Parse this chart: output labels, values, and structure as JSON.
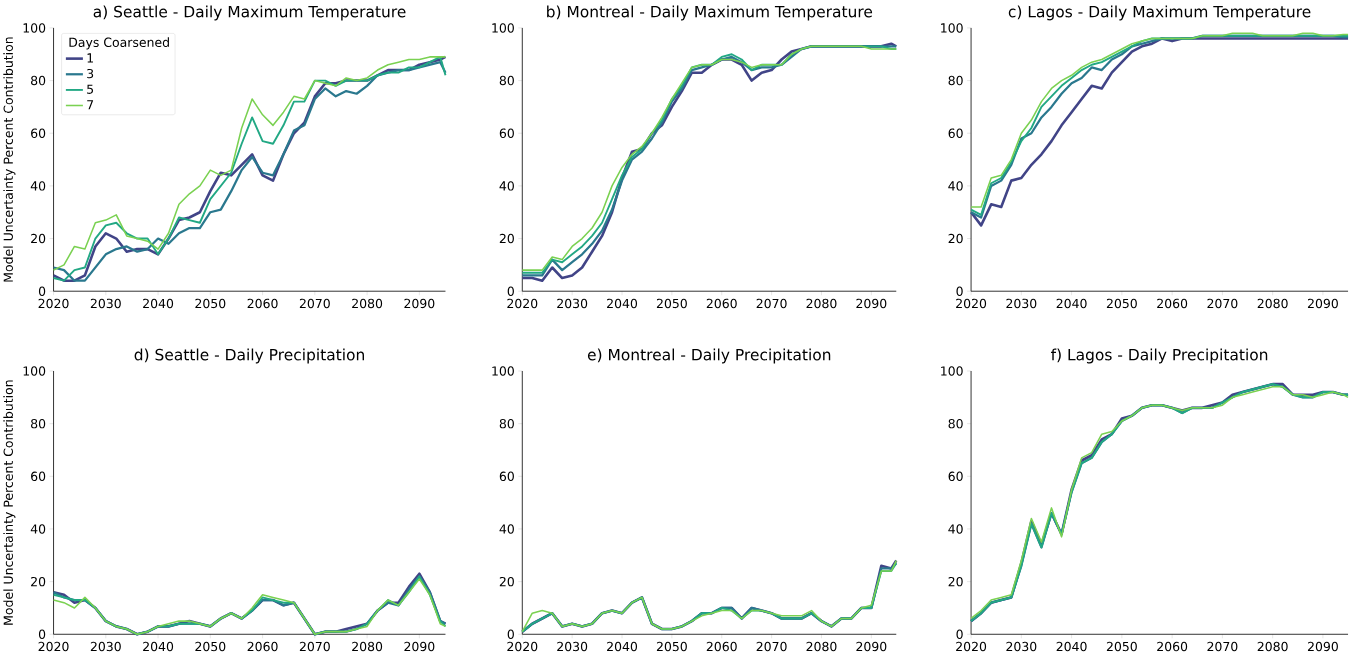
{
  "chart_data": [
    {
      "type": "line",
      "title": "a) Seattle - Daily Maximum Temperature",
      "ylabel": "Model Uncertainty Percent Contribution",
      "legend": "top left",
      "legend_title": "Days Coarsened",
      "x": [
        2020,
        2022,
        2024,
        2026,
        2028,
        2030,
        2032,
        2034,
        2036,
        2038,
        2040,
        2042,
        2044,
        2046,
        2048,
        2050,
        2052,
        2054,
        2056,
        2058,
        2060,
        2062,
        2064,
        2066,
        2068,
        2070,
        2072,
        2074,
        2076,
        2078,
        2080,
        2082,
        2084,
        2086,
        2088,
        2090,
        2092,
        2094,
        2095
      ],
      "xlim": [
        2020,
        2095
      ],
      "ylim": [
        0,
        100
      ],
      "xticks": [
        2020,
        2030,
        2040,
        2050,
        2060,
        2070,
        2080,
        2090
      ],
      "yticks": [
        0,
        20,
        40,
        60,
        80,
        100
      ],
      "series": [
        {
          "name": "1",
          "color": "#414487",
          "values": [
            6,
            4,
            4,
            6,
            17,
            22,
            20,
            15,
            16,
            16,
            14,
            20,
            27,
            28,
            30,
            38,
            45,
            44,
            48,
            52,
            44,
            42,
            52,
            60,
            64,
            74,
            79,
            79,
            80,
            80,
            80,
            82,
            84,
            84,
            84,
            86,
            87,
            88,
            89
          ]
        },
        {
          "name": "3",
          "color": "#2a788e",
          "values": [
            9,
            8,
            4,
            4,
            9,
            14,
            16,
            17,
            15,
            16,
            20,
            18,
            22,
            24,
            24,
            30,
            31,
            38,
            46,
            51,
            45,
            44,
            52,
            61,
            63,
            73,
            77,
            74,
            76,
            75,
            78,
            82,
            83,
            84,
            84,
            85,
            86,
            87,
            83
          ]
        },
        {
          "name": "5",
          "color": "#22a884",
          "values": [
            5,
            4,
            8,
            9,
            20,
            25,
            26,
            22,
            20,
            20,
            14,
            20,
            28,
            27,
            26,
            35,
            40,
            45,
            56,
            66,
            57,
            56,
            63,
            72,
            72,
            80,
            80,
            78,
            80,
            80,
            80,
            82,
            83,
            83,
            85,
            85,
            87,
            89,
            82
          ]
        },
        {
          "name": "7",
          "color": "#7ad151",
          "values": [
            8,
            10,
            17,
            16,
            26,
            27,
            29,
            21,
            20,
            19,
            16,
            22,
            33,
            37,
            40,
            46,
            44,
            46,
            62,
            73,
            67,
            63,
            68,
            74,
            73,
            80,
            79,
            78,
            81,
            80,
            81,
            84,
            86,
            87,
            88,
            88,
            89,
            89,
            89
          ]
        }
      ]
    },
    {
      "type": "line",
      "title": "b) Montreal - Daily Maximum Temperature",
      "x": [
        2020,
        2022,
        2024,
        2026,
        2028,
        2030,
        2032,
        2034,
        2036,
        2038,
        2040,
        2042,
        2044,
        2046,
        2048,
        2050,
        2052,
        2054,
        2056,
        2058,
        2060,
        2062,
        2064,
        2066,
        2068,
        2070,
        2072,
        2074,
        2076,
        2078,
        2080,
        2082,
        2084,
        2086,
        2088,
        2090,
        2092,
        2094,
        2095
      ],
      "xlim": [
        2020,
        2095
      ],
      "ylim": [
        0,
        100
      ],
      "xticks": [
        2020,
        2030,
        2040,
        2050,
        2060,
        2070,
        2080,
        2090
      ],
      "yticks": [
        0,
        20,
        40,
        60,
        80,
        100
      ],
      "series": [
        {
          "color": "#414487",
          "values": [
            5,
            5,
            4,
            9,
            5,
            6,
            9,
            15,
            21,
            30,
            43,
            53,
            54,
            60,
            63,
            70,
            76,
            83,
            83,
            86,
            88,
            88,
            86,
            80,
            83,
            84,
            88,
            91,
            92,
            93,
            93,
            93,
            93,
            93,
            93,
            93,
            93,
            94,
            93
          ]
        },
        {
          "color": "#2a788e",
          "values": [
            6,
            6,
            6,
            12,
            8,
            11,
            14,
            18,
            23,
            31,
            42,
            50,
            53,
            58,
            64,
            72,
            77,
            84,
            85,
            86,
            88,
            89,
            87,
            84,
            85,
            85,
            86,
            89,
            92,
            93,
            93,
            93,
            93,
            93,
            93,
            93,
            93,
            93,
            93
          ]
        },
        {
          "color": "#22a884",
          "values": [
            7,
            7,
            7,
            12,
            11,
            14,
            17,
            21,
            26,
            35,
            44,
            51,
            54,
            60,
            65,
            73,
            78,
            85,
            86,
            86,
            89,
            90,
            88,
            84,
            86,
            86,
            86,
            90,
            92,
            93,
            93,
            93,
            93,
            93,
            93,
            93,
            93,
            92,
            92
          ]
        },
        {
          "color": "#7ad151",
          "values": [
            8,
            8,
            8,
            13,
            12,
            17,
            20,
            24,
            30,
            40,
            47,
            52,
            55,
            60,
            66,
            73,
            79,
            85,
            86,
            86,
            88,
            88,
            87,
            85,
            86,
            86,
            86,
            90,
            92,
            93,
            93,
            93,
            93,
            93,
            93,
            92,
            92,
            92,
            92
          ]
        }
      ]
    },
    {
      "type": "line",
      "title": "c) Lagos - Daily Maximum Temperature",
      "x": [
        2020,
        2022,
        2024,
        2026,
        2028,
        2030,
        2032,
        2034,
        2036,
        2038,
        2040,
        2042,
        2044,
        2046,
        2048,
        2050,
        2052,
        2054,
        2056,
        2058,
        2060,
        2062,
        2064,
        2066,
        2068,
        2070,
        2072,
        2074,
        2076,
        2078,
        2080,
        2082,
        2084,
        2086,
        2088,
        2090,
        2092,
        2094,
        2095
      ],
      "xlim": [
        2020,
        2095
      ],
      "ylim": [
        0,
        100
      ],
      "xticks": [
        2020,
        2030,
        2040,
        2050,
        2060,
        2070,
        2080,
        2090
      ],
      "yticks": [
        0,
        20,
        40,
        60,
        80,
        100
      ],
      "series": [
        {
          "color": "#414487",
          "values": [
            30,
            25,
            33,
            32,
            42,
            43,
            48,
            52,
            57,
            63,
            68,
            73,
            78,
            77,
            83,
            87,
            91,
            93,
            94,
            96,
            95,
            96,
            96,
            96,
            96,
            96,
            96,
            96,
            96,
            96,
            96,
            96,
            96,
            96,
            96,
            96,
            96,
            96,
            96
          ]
        },
        {
          "color": "#2a788e",
          "values": [
            30,
            28,
            40,
            42,
            48,
            58,
            60,
            66,
            70,
            75,
            79,
            81,
            85,
            84,
            88,
            90,
            93,
            94,
            95,
            96,
            96,
            96,
            96,
            97,
            97,
            97,
            97,
            97,
            97,
            97,
            97,
            97,
            97,
            97,
            97,
            97,
            97,
            96.5,
            96.5
          ]
        },
        {
          "color": "#22a884",
          "values": [
            31,
            29,
            41,
            43,
            49,
            57,
            62,
            70,
            74,
            78,
            81,
            84,
            86,
            87,
            89,
            91,
            93,
            95,
            96,
            96,
            96,
            96,
            96,
            97,
            97,
            97,
            97,
            97,
            97,
            97,
            97,
            97,
            97,
            97,
            97,
            97,
            97,
            97,
            97
          ]
        },
        {
          "color": "#7ad151",
          "values": [
            32,
            32,
            43,
            44,
            50,
            60,
            65,
            72,
            77,
            80,
            82,
            85,
            87,
            88,
            90,
            92,
            94,
            95,
            96,
            96,
            96,
            96,
            96,
            97,
            97,
            97,
            98,
            98,
            98,
            97,
            97,
            97,
            97,
            98,
            98,
            97,
            97,
            97.5,
            97.5
          ]
        }
      ]
    },
    {
      "type": "line",
      "title": "d) Seattle - Daily Precipitation",
      "ylabel": "Model Uncertainty Percent Contribution",
      "x": [
        2020,
        2022,
        2024,
        2026,
        2028,
        2030,
        2032,
        2034,
        2036,
        2038,
        2040,
        2042,
        2044,
        2046,
        2048,
        2050,
        2052,
        2054,
        2056,
        2058,
        2060,
        2062,
        2064,
        2066,
        2068,
        2070,
        2072,
        2074,
        2076,
        2078,
        2080,
        2082,
        2084,
        2086,
        2088,
        2090,
        2092,
        2094,
        2095
      ],
      "xlim": [
        2020,
        2095
      ],
      "ylim": [
        0,
        100
      ],
      "xticks": [
        2020,
        2030,
        2040,
        2050,
        2060,
        2070,
        2080,
        2090
      ],
      "yticks": [
        0,
        20,
        40,
        60,
        80,
        100
      ],
      "series": [
        {
          "color": "#414487",
          "values": [
            16,
            15,
            12,
            13,
            10,
            5,
            3,
            2,
            0,
            1,
            3,
            3,
            4,
            5,
            4,
            3,
            6,
            8,
            6,
            9,
            13,
            13,
            11,
            12,
            6,
            0,
            1,
            1,
            2,
            3,
            4,
            9,
            12,
            12,
            18,
            23,
            16,
            5,
            4
          ]
        },
        {
          "color": "#2a788e",
          "values": [
            16,
            14,
            13,
            13,
            10,
            5,
            3,
            2,
            0,
            1,
            3,
            3,
            4,
            4,
            4,
            3,
            6,
            8,
            6,
            9,
            13,
            13,
            11,
            12,
            6,
            0,
            1,
            1,
            1,
            2,
            4,
            9,
            12,
            11,
            17,
            22,
            16,
            5,
            4
          ]
        },
        {
          "color": "#22a884",
          "values": [
            15,
            14,
            13,
            13,
            10,
            5,
            3,
            2,
            0,
            1,
            3,
            3,
            4,
            4,
            4,
            3,
            6,
            8,
            6,
            9,
            14,
            13,
            12,
            12,
            6,
            0,
            1,
            1,
            1,
            2,
            4,
            9,
            13,
            11,
            16,
            22,
            15,
            5,
            3
          ]
        },
        {
          "color": "#7ad151",
          "values": [
            13,
            12,
            10,
            14,
            10,
            5,
            3,
            2,
            0,
            1,
            3,
            4,
            5,
            5,
            4,
            3,
            6,
            8,
            6,
            10,
            15,
            14,
            13,
            12,
            6,
            0,
            1,
            1,
            1,
            2,
            3,
            9,
            13,
            11,
            16,
            21,
            15,
            4,
            3
          ]
        }
      ]
    },
    {
      "type": "line",
      "title": "e) Montreal - Daily Precipitation",
      "x": [
        2020,
        2022,
        2024,
        2026,
        2028,
        2030,
        2032,
        2034,
        2036,
        2038,
        2040,
        2042,
        2044,
        2046,
        2048,
        2050,
        2052,
        2054,
        2056,
        2058,
        2060,
        2062,
        2064,
        2066,
        2068,
        2070,
        2072,
        2074,
        2076,
        2078,
        2080,
        2082,
        2084,
        2086,
        2088,
        2090,
        2092,
        2094,
        2095
      ],
      "xlim": [
        2020,
        2095
      ],
      "ylim": [
        0,
        100
      ],
      "xticks": [
        2020,
        2030,
        2040,
        2050,
        2060,
        2070,
        2080,
        2090
      ],
      "yticks": [
        0,
        20,
        40,
        60,
        80,
        100
      ],
      "series": [
        {
          "color": "#414487",
          "values": [
            1,
            4,
            6,
            8,
            3,
            4,
            3,
            4,
            8,
            9,
            8,
            12,
            14,
            4,
            2,
            2,
            3,
            5,
            8,
            8,
            10,
            10,
            6,
            10,
            9,
            8,
            6,
            6,
            6,
            8,
            5,
            3,
            6,
            6,
            10,
            10,
            26,
            25,
            28
          ]
        },
        {
          "color": "#2a788e",
          "values": [
            1,
            4,
            6,
            8,
            3,
            4,
            3,
            4,
            8,
            9,
            8,
            12,
            14,
            4,
            2,
            2,
            3,
            5,
            8,
            8,
            10,
            10,
            6,
            10,
            9,
            8,
            6,
            6,
            6,
            8,
            5,
            3,
            6,
            6,
            10,
            10,
            25,
            25,
            27
          ]
        },
        {
          "color": "#22a884",
          "values": [
            1,
            4,
            6,
            8,
            3,
            4,
            3,
            4,
            8,
            9,
            8,
            12,
            14,
            4,
            2,
            2,
            3,
            5,
            8,
            8,
            10,
            9,
            6,
            9,
            9,
            8,
            6,
            6,
            6,
            8,
            5,
            3,
            6,
            6,
            10,
            10,
            24,
            24,
            27
          ]
        },
        {
          "color": "#7ad151",
          "values": [
            1,
            8,
            9,
            8,
            3,
            4,
            3,
            4,
            8,
            9,
            8,
            12,
            14,
            4,
            2,
            2,
            3,
            5,
            7,
            8,
            9,
            9,
            6,
            9,
            9,
            8,
            7,
            7,
            7,
            9,
            5,
            3,
            6,
            6,
            10,
            11,
            24,
            24,
            28
          ]
        }
      ]
    },
    {
      "type": "line",
      "title": "f) Lagos - Daily Precipitation",
      "x": [
        2020,
        2022,
        2024,
        2026,
        2028,
        2030,
        2032,
        2034,
        2036,
        2038,
        2040,
        2042,
        2044,
        2046,
        2048,
        2050,
        2052,
        2054,
        2056,
        2058,
        2060,
        2062,
        2064,
        2066,
        2068,
        2070,
        2072,
        2074,
        2076,
        2078,
        2080,
        2082,
        2084,
        2086,
        2088,
        2090,
        2092,
        2094,
        2095
      ],
      "xlim": [
        2020,
        2095
      ],
      "ylim": [
        0,
        100
      ],
      "xticks": [
        2020,
        2030,
        2040,
        2050,
        2060,
        2070,
        2080,
        2090
      ],
      "yticks": [
        0,
        20,
        40,
        60,
        80,
        100
      ],
      "series": [
        {
          "color": "#414487",
          "values": [
            5,
            8,
            12,
            13,
            14,
            27,
            43,
            34,
            46,
            38,
            55,
            66,
            68,
            74,
            76,
            82,
            83,
            86,
            87,
            87,
            86,
            85,
            86,
            86,
            87,
            88,
            91,
            92,
            93,
            94,
            95,
            95,
            91,
            91,
            91,
            92,
            92,
            91,
            91
          ]
        },
        {
          "color": "#2a788e",
          "values": [
            5,
            8,
            12,
            13,
            14,
            26,
            42,
            33,
            46,
            38,
            54,
            65,
            67,
            73,
            76,
            81,
            83,
            86,
            87,
            87,
            86,
            84,
            86,
            86,
            86,
            88,
            90,
            92,
            93,
            94,
            95,
            94,
            91,
            90,
            90,
            92,
            92,
            91,
            91
          ]
        },
        {
          "color": "#22a884",
          "values": [
            5,
            8,
            12,
            13,
            14,
            26,
            42,
            33,
            46,
            38,
            54,
            65,
            67,
            73,
            76,
            81,
            83,
            86,
            87,
            87,
            86,
            84,
            86,
            86,
            86,
            88,
            90,
            92,
            93,
            94,
            95,
            94,
            91,
            90,
            90,
            92,
            92,
            91,
            91
          ]
        },
        {
          "color": "#7ad151",
          "values": [
            6,
            9,
            13,
            14,
            15,
            28,
            44,
            35,
            48,
            37,
            55,
            67,
            69,
            76,
            77,
            81,
            83,
            86,
            87,
            87,
            86,
            85,
            86,
            86,
            86,
            87,
            90,
            91,
            92,
            93,
            94,
            94,
            91,
            91,
            90,
            91,
            92,
            91,
            90
          ]
        }
      ]
    }
  ]
}
